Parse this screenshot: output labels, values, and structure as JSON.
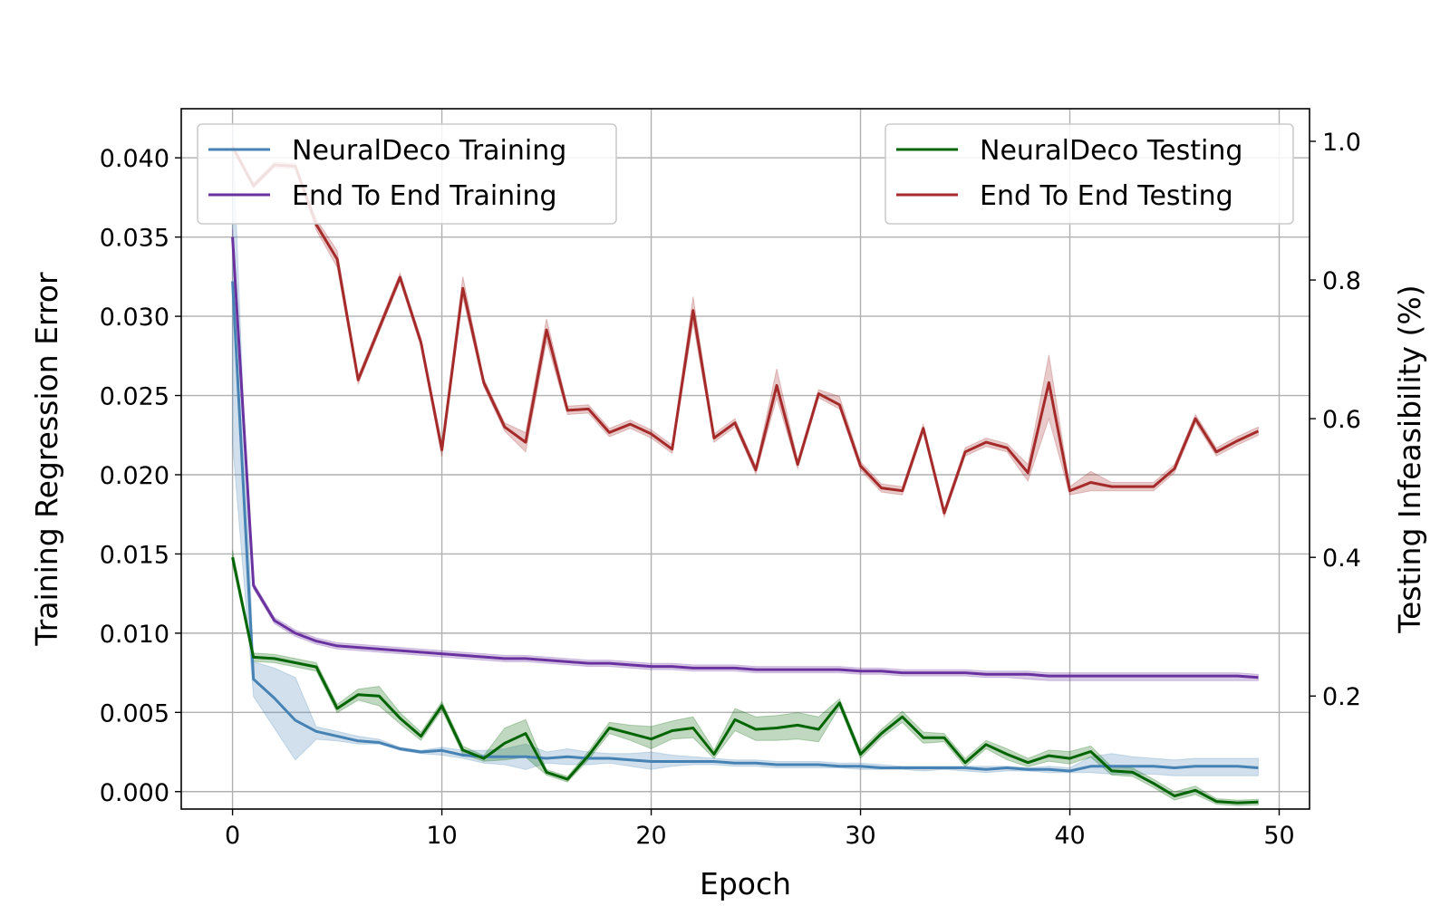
{
  "chart_data": {
    "type": "line",
    "title": "",
    "xlabel": "Epoch",
    "ylabel_left": "Training Regression Error",
    "ylabel_right": "Testing Infeasibility (%)",
    "xlim": [
      -2.45,
      51.45
    ],
    "ylim_left": [
      -0.0011,
      0.0431
    ],
    "ylim_right": [
      0.037,
      1.047
    ],
    "x_ticks": [
      0,
      10,
      20,
      30,
      40,
      50
    ],
    "x_tick_labels": [
      "0",
      "10",
      "20",
      "30",
      "40",
      "50"
    ],
    "y_ticks_left": [
      0.0,
      0.005,
      0.01,
      0.015,
      0.02,
      0.025,
      0.03,
      0.035,
      0.04
    ],
    "y_tick_labels_left": [
      "0.000",
      "0.005",
      "0.010",
      "0.015",
      "0.020",
      "0.025",
      "0.030",
      "0.035",
      "0.040"
    ],
    "y_ticks_right": [
      0.2,
      0.4,
      0.6,
      0.8,
      1.0
    ],
    "y_tick_labels_right": [
      "0.2",
      "0.4",
      "0.6",
      "0.8",
      "1.0"
    ],
    "grid": true,
    "legends": [
      {
        "placement": "upper-left",
        "entries": [
          0,
          1
        ]
      },
      {
        "placement": "upper-right",
        "entries": [
          2,
          3
        ]
      }
    ],
    "series": [
      {
        "name": "NeuralDeco Training",
        "axis": "left",
        "color": "#4682b4",
        "x": [
          0,
          1,
          2,
          3,
          4,
          5,
          6,
          7,
          8,
          9,
          10,
          11,
          12,
          13,
          14,
          15,
          16,
          17,
          18,
          19,
          20,
          21,
          22,
          23,
          24,
          25,
          26,
          27,
          28,
          29,
          30,
          31,
          32,
          33,
          34,
          35,
          36,
          37,
          38,
          39,
          40,
          41,
          42,
          43,
          44,
          45,
          46,
          47,
          48,
          49
        ],
        "values": [
          0.0322,
          0.0071,
          0.0059,
          0.0045,
          0.0038,
          0.0035,
          0.0032,
          0.0031,
          0.0027,
          0.0025,
          0.0026,
          0.0023,
          0.0022,
          0.0022,
          0.0022,
          0.0021,
          0.0022,
          0.0021,
          0.0021,
          0.002,
          0.0019,
          0.0019,
          0.0019,
          0.0019,
          0.0018,
          0.0018,
          0.0017,
          0.0017,
          0.0017,
          0.0016,
          0.0016,
          0.0015,
          0.0015,
          0.0015,
          0.0015,
          0.0015,
          0.0014,
          0.0015,
          0.0014,
          0.0014,
          0.0013,
          0.0016,
          0.0016,
          0.0016,
          0.0016,
          0.0015,
          0.0016,
          0.0016,
          0.0016,
          0.0015
        ],
        "lower": [
          0.022,
          0.006,
          0.004,
          0.002,
          0.0033,
          0.0032,
          0.003,
          0.003,
          0.0026,
          0.0024,
          0.0023,
          0.0021,
          0.0018,
          0.0017,
          0.0014,
          0.0018,
          0.0017,
          0.0017,
          0.0018,
          0.0016,
          0.0014,
          0.0016,
          0.0017,
          0.0017,
          0.0016,
          0.0016,
          0.0015,
          0.0015,
          0.0015,
          0.0015,
          0.0014,
          0.0014,
          0.0014,
          0.0013,
          0.0014,
          0.0013,
          0.0012,
          0.0013,
          0.0013,
          0.0012,
          0.0012,
          0.0012,
          0.0011,
          0.0011,
          0.0011,
          0.001,
          0.001,
          0.001,
          0.001,
          0.001
        ],
        "upper": [
          0.042,
          0.0082,
          0.0078,
          0.0072,
          0.0041,
          0.0038,
          0.0035,
          0.0033,
          0.0028,
          0.0026,
          0.0028,
          0.0026,
          0.0026,
          0.0027,
          0.003,
          0.0025,
          0.0027,
          0.0025,
          0.0024,
          0.0024,
          0.0025,
          0.0023,
          0.0022,
          0.0021,
          0.002,
          0.002,
          0.0019,
          0.0019,
          0.0019,
          0.0018,
          0.0018,
          0.0017,
          0.0016,
          0.0016,
          0.0016,
          0.0016,
          0.0016,
          0.0016,
          0.0015,
          0.0016,
          0.0015,
          0.0022,
          0.0024,
          0.0022,
          0.0021,
          0.002,
          0.0021,
          0.0021,
          0.0021,
          0.0021
        ]
      },
      {
        "name": "End To End Training",
        "axis": "left",
        "color": "#6a329f",
        "x": [
          0,
          1,
          2,
          3,
          4,
          5,
          6,
          7,
          8,
          9,
          10,
          11,
          12,
          13,
          14,
          15,
          16,
          17,
          18,
          19,
          20,
          21,
          22,
          23,
          24,
          25,
          26,
          27,
          28,
          29,
          30,
          31,
          32,
          33,
          34,
          35,
          36,
          37,
          38,
          39,
          40,
          41,
          42,
          43,
          44,
          45,
          46,
          47,
          48,
          49
        ],
        "values": [
          0.035,
          0.013,
          0.0108,
          0.01,
          0.0095,
          0.0092,
          0.0091,
          0.009,
          0.0089,
          0.0088,
          0.0087,
          0.0086,
          0.0085,
          0.0084,
          0.0084,
          0.0083,
          0.0082,
          0.0081,
          0.0081,
          0.008,
          0.0079,
          0.0079,
          0.0078,
          0.0078,
          0.0078,
          0.0077,
          0.0077,
          0.0077,
          0.0077,
          0.0077,
          0.0076,
          0.0076,
          0.0075,
          0.0075,
          0.0075,
          0.0075,
          0.0074,
          0.0074,
          0.0074,
          0.0073,
          0.0073,
          0.0073,
          0.0073,
          0.0073,
          0.0073,
          0.0073,
          0.0073,
          0.0073,
          0.0073,
          0.0072
        ],
        "lower": [
          0.0345,
          0.0128,
          0.0106,
          0.0098,
          0.0093,
          0.009,
          0.0089,
          0.0088,
          0.0087,
          0.0086,
          0.0085,
          0.0084,
          0.0083,
          0.0082,
          0.0082,
          0.0081,
          0.008,
          0.0079,
          0.0079,
          0.0078,
          0.0077,
          0.0077,
          0.0076,
          0.0076,
          0.0076,
          0.0075,
          0.0075,
          0.0075,
          0.0075,
          0.0075,
          0.0074,
          0.0074,
          0.0073,
          0.0073,
          0.0073,
          0.0073,
          0.0072,
          0.0072,
          0.0071,
          0.007,
          0.007,
          0.007,
          0.007,
          0.007,
          0.007,
          0.007,
          0.007,
          0.007,
          0.007,
          0.007
        ],
        "upper": [
          0.0355,
          0.0132,
          0.011,
          0.0102,
          0.0097,
          0.0094,
          0.0093,
          0.0092,
          0.0091,
          0.009,
          0.0089,
          0.0088,
          0.0087,
          0.0086,
          0.0086,
          0.0085,
          0.0084,
          0.0083,
          0.0083,
          0.0082,
          0.0081,
          0.0081,
          0.008,
          0.008,
          0.008,
          0.0079,
          0.0079,
          0.0079,
          0.0079,
          0.0079,
          0.0078,
          0.0078,
          0.0077,
          0.0077,
          0.0077,
          0.0077,
          0.0076,
          0.0076,
          0.0076,
          0.0075,
          0.0075,
          0.0075,
          0.0075,
          0.0075,
          0.0075,
          0.0075,
          0.0075,
          0.0075,
          0.0075,
          0.0074
        ]
      },
      {
        "name": "NeuralDeco Testing",
        "axis": "right",
        "color": "#006400",
        "x": [
          0,
          1,
          2,
          3,
          4,
          5,
          6,
          7,
          8,
          9,
          10,
          11,
          12,
          13,
          14,
          15,
          16,
          17,
          18,
          19,
          20,
          21,
          22,
          23,
          24,
          25,
          26,
          27,
          28,
          29,
          30,
          31,
          32,
          33,
          34,
          35,
          36,
          37,
          38,
          39,
          40,
          41,
          42,
          43,
          44,
          45,
          46,
          47,
          48,
          49
        ],
        "values": [
          0.4,
          0.256,
          0.254,
          0.248,
          0.242,
          0.182,
          0.202,
          0.2,
          0.168,
          0.142,
          0.186,
          0.122,
          0.11,
          0.132,
          0.146,
          0.09,
          0.08,
          0.114,
          0.154,
          0.146,
          0.138,
          0.15,
          0.154,
          0.116,
          0.166,
          0.152,
          0.154,
          0.158,
          0.152,
          0.19,
          0.116,
          0.146,
          0.17,
          0.14,
          0.14,
          0.104,
          0.13,
          0.116,
          0.104,
          0.114,
          0.11,
          0.12,
          0.092,
          0.09,
          0.074,
          0.056,
          0.064,
          0.048,
          0.046,
          0.047
        ],
        "lower": [
          0.39,
          0.25,
          0.248,
          0.242,
          0.236,
          0.176,
          0.194,
          0.186,
          0.16,
          0.136,
          0.18,
          0.116,
          0.106,
          0.108,
          0.112,
          0.086,
          0.076,
          0.108,
          0.146,
          0.136,
          0.124,
          0.138,
          0.14,
          0.11,
          0.15,
          0.136,
          0.136,
          0.138,
          0.134,
          0.184,
          0.11,
          0.14,
          0.162,
          0.132,
          0.134,
          0.098,
          0.124,
          0.108,
          0.098,
          0.106,
          0.102,
          0.112,
          0.086,
          0.084,
          0.068,
          0.05,
          0.058,
          0.044,
          0.042,
          0.043
        ],
        "upper": [
          0.41,
          0.262,
          0.26,
          0.254,
          0.248,
          0.188,
          0.21,
          0.214,
          0.176,
          0.148,
          0.192,
          0.128,
          0.114,
          0.154,
          0.166,
          0.094,
          0.084,
          0.12,
          0.162,
          0.158,
          0.156,
          0.164,
          0.17,
          0.122,
          0.182,
          0.17,
          0.172,
          0.176,
          0.17,
          0.196,
          0.122,
          0.152,
          0.178,
          0.148,
          0.146,
          0.11,
          0.136,
          0.124,
          0.11,
          0.122,
          0.12,
          0.128,
          0.098,
          0.096,
          0.08,
          0.062,
          0.07,
          0.052,
          0.05,
          0.051
        ]
      },
      {
        "name": "End To End Testing",
        "axis": "right",
        "color": "#a52a2a",
        "x": [
          0,
          1,
          2,
          3,
          4,
          5,
          6,
          7,
          8,
          9,
          10,
          11,
          12,
          13,
          14,
          15,
          16,
          17,
          18,
          19,
          20,
          21,
          22,
          23,
          24,
          25,
          26,
          27,
          28,
          29,
          30,
          31,
          32,
          33,
          34,
          35,
          36,
          37,
          38,
          39,
          40,
          41,
          42,
          43,
          44,
          45,
          46,
          47,
          48,
          49
        ],
        "values": [
          0.992,
          0.936,
          0.966,
          0.964,
          0.88,
          0.83,
          0.656,
          0.73,
          0.804,
          0.71,
          0.555,
          0.788,
          0.652,
          0.588,
          0.566,
          0.728,
          0.612,
          0.614,
          0.58,
          0.592,
          0.578,
          0.556,
          0.756,
          0.572,
          0.594,
          0.526,
          0.648,
          0.534,
          0.636,
          0.62,
          0.532,
          0.5,
          0.496,
          0.586,
          0.464,
          0.552,
          0.566,
          0.558,
          0.522,
          0.652,
          0.496,
          0.508,
          0.502,
          0.502,
          0.502,
          0.528,
          0.6,
          0.552,
          0.568,
          0.582
        ],
        "lower": [
          0.988,
          0.932,
          0.962,
          0.96,
          0.872,
          0.818,
          0.65,
          0.724,
          0.798,
          0.704,
          0.545,
          0.775,
          0.646,
          0.582,
          0.552,
          0.712,
          0.606,
          0.608,
          0.574,
          0.586,
          0.572,
          0.55,
          0.738,
          0.566,
          0.588,
          0.52,
          0.63,
          0.528,
          0.63,
          0.614,
          0.526,
          0.494,
          0.49,
          0.58,
          0.458,
          0.546,
          0.56,
          0.552,
          0.51,
          0.6,
          0.49,
          0.496,
          0.496,
          0.496,
          0.496,
          0.522,
          0.594,
          0.546,
          0.562,
          0.576
        ],
        "upper": [
          0.996,
          0.94,
          0.97,
          0.968,
          0.888,
          0.842,
          0.662,
          0.736,
          0.81,
          0.716,
          0.565,
          0.805,
          0.658,
          0.594,
          0.58,
          0.744,
          0.618,
          0.62,
          0.586,
          0.598,
          0.584,
          0.562,
          0.776,
          0.578,
          0.6,
          0.532,
          0.672,
          0.54,
          0.642,
          0.632,
          0.538,
          0.506,
          0.502,
          0.592,
          0.47,
          0.558,
          0.572,
          0.564,
          0.534,
          0.692,
          0.502,
          0.524,
          0.508,
          0.508,
          0.508,
          0.534,
          0.606,
          0.558,
          0.574,
          0.588
        ]
      }
    ]
  }
}
